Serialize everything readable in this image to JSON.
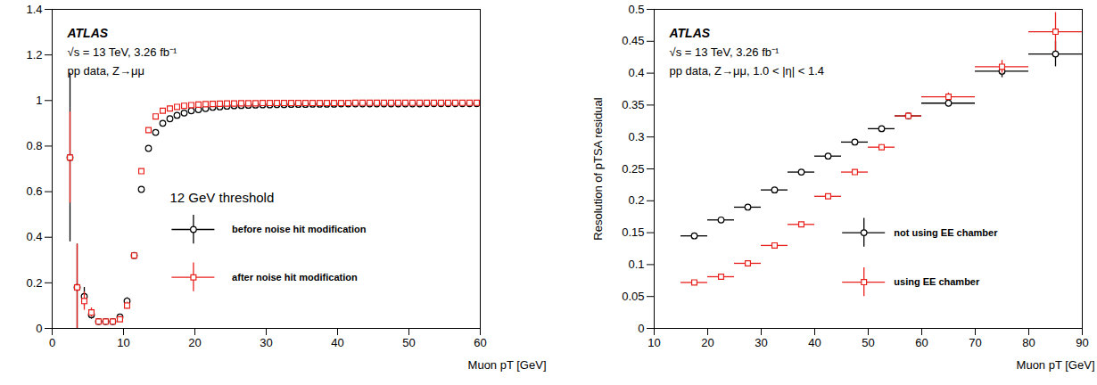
{
  "chart_data": [
    {
      "type": "scatter",
      "title": "ATLAS",
      "subtitle": [
        "√s = 13 TeV, 3.26 fb⁻¹",
        "pp data, Z→μμ"
      ],
      "annotations": [
        "12 GeV threshold"
      ],
      "xlabel": "Muon pT [GeV]",
      "ylabel": null,
      "xlim": [
        0,
        60
      ],
      "xticks": [
        0,
        10,
        20,
        30,
        40,
        50,
        60
      ],
      "ylim": [
        0,
        1.4
      ],
      "yticks": [
        0,
        0.2,
        0.4,
        0.6,
        0.8,
        1,
        1.2,
        1.4
      ],
      "x": [
        2.5,
        3.5,
        4.5,
        5.5,
        6.5,
        7.5,
        8.5,
        9.5,
        10.5,
        11.5,
        12.5,
        13.5,
        14.5,
        15.5,
        16.5,
        17.5,
        18.5,
        19.5,
        20.5,
        21.5,
        22.5,
        23.5,
        24.5,
        25.5,
        26.5,
        27.5,
        28.5,
        29.5,
        30.5,
        31.5,
        32.5,
        33.5,
        34.5,
        35.5,
        36.5,
        37.5,
        38.5,
        39.5,
        40.5,
        41.5,
        42.5,
        43.5,
        44.5,
        45.5,
        46.5,
        47.5,
        48.5,
        49.5,
        50.5,
        51.5,
        52.5,
        53.5,
        54.5,
        55.5,
        56.5,
        57.5,
        58.5,
        59.5
      ],
      "series": [
        {
          "name": "before noise hit modification",
          "color": "#000000",
          "marker": "circle",
          "values": [
            0.75,
            0.18,
            0.14,
            0.06,
            0.03,
            0.03,
            0.03,
            0.05,
            0.12,
            0.32,
            0.61,
            0.79,
            0.86,
            0.9,
            0.92,
            0.935,
            0.945,
            0.955,
            0.96,
            0.965,
            0.97,
            0.972,
            0.975,
            0.977,
            0.978,
            0.979,
            0.98,
            0.981,
            0.981,
            0.982,
            0.982,
            0.983,
            0.983,
            0.983,
            0.984,
            0.984,
            0.984,
            0.984,
            0.985,
            0.985,
            0.985,
            0.985,
            0.985,
            0.985,
            0.985,
            0.985,
            0.985,
            0.985,
            0.985,
            0.985,
            0.986,
            0.986,
            0.986,
            0.986,
            0.986,
            0.986,
            0.986,
            0.986
          ],
          "errors": [
            0.37,
            0.19,
            0.04,
            0.02,
            0.01,
            0.01,
            0.01,
            0.01,
            0.015,
            0.01,
            0.01,
            0.005,
            0.005,
            0.004,
            0.003,
            0.003,
            0.002,
            0.002,
            0.002,
            0.002,
            0.001,
            0.001,
            0.001,
            0.001,
            0.001,
            0.001,
            0.001,
            0.001,
            0.001,
            0.001,
            0.001,
            0.001,
            0.001,
            0.001,
            0.001,
            0.001,
            0.001,
            0.001,
            0.001,
            0.001,
            0.001,
            0.001,
            0.001,
            0.001,
            0.001,
            0.001,
            0.001,
            0.001,
            0.001,
            0.001,
            0.001,
            0.001,
            0.001,
            0.001,
            0.001,
            0.001,
            0.001,
            0.001
          ]
        },
        {
          "name": "after noise hit modification",
          "color": "#e8201c",
          "marker": "square",
          "values": [
            0.75,
            0.18,
            0.12,
            0.07,
            0.03,
            0.03,
            0.03,
            0.04,
            0.1,
            0.32,
            0.69,
            0.87,
            0.93,
            0.955,
            0.965,
            0.972,
            0.977,
            0.98,
            0.982,
            0.984,
            0.985,
            0.986,
            0.987,
            0.987,
            0.988,
            0.988,
            0.988,
            0.989,
            0.989,
            0.989,
            0.989,
            0.989,
            0.989,
            0.989,
            0.989,
            0.989,
            0.989,
            0.989,
            0.989,
            0.989,
            0.99,
            0.99,
            0.99,
            0.99,
            0.99,
            0.99,
            0.99,
            0.99,
            0.99,
            0.99,
            0.99,
            0.99,
            0.99,
            0.99,
            0.99,
            0.99,
            0.99,
            0.99
          ],
          "errors": [
            0.2,
            0.19,
            0.04,
            0.02,
            0.01,
            0.01,
            0.01,
            0.01,
            0.015,
            0.01,
            0.01,
            0.005,
            0.005,
            0.004,
            0.003,
            0.003,
            0.002,
            0.002,
            0.002,
            0.002,
            0.001,
            0.001,
            0.001,
            0.001,
            0.001,
            0.001,
            0.001,
            0.001,
            0.001,
            0.001,
            0.001,
            0.001,
            0.001,
            0.001,
            0.001,
            0.001,
            0.001,
            0.001,
            0.001,
            0.001,
            0.001,
            0.001,
            0.001,
            0.001,
            0.001,
            0.001,
            0.001,
            0.001,
            0.001,
            0.001,
            0.001,
            0.001,
            0.001,
            0.001,
            0.001,
            0.001,
            0.001,
            0.001
          ]
        }
      ]
    },
    {
      "type": "scatter",
      "title": "ATLAS",
      "subtitle": [
        "√s = 13 TeV, 3.26 fb⁻¹",
        "pp data, Z→μμ, 1.0 < |η| < 1.4"
      ],
      "xlabel": "Muon pT [GeV]",
      "ylabel": "Resolution of pTSA residual",
      "xlim": [
        10,
        90
      ],
      "xticks": [
        10,
        20,
        30,
        40,
        50,
        60,
        70,
        80,
        90
      ],
      "ylim": [
        0,
        0.5
      ],
      "yticks": [
        0,
        0.05,
        0.1,
        0.15,
        0.2,
        0.25,
        0.3,
        0.35,
        0.4,
        0.45,
        0.5
      ],
      "x": [
        17.5,
        22.5,
        27.5,
        32.5,
        37.5,
        42.5,
        47.5,
        52.5,
        57.5,
        65,
        75,
        85
      ],
      "x_errors": [
        2.5,
        2.5,
        2.5,
        2.5,
        2.5,
        2.5,
        2.5,
        2.5,
        2.5,
        5,
        5,
        5
      ],
      "series": [
        {
          "name": "not using EE chamber",
          "color": "#000000",
          "marker": "circle",
          "values": [
            0.145,
            0.17,
            0.19,
            0.217,
            0.245,
            0.27,
            0.292,
            0.313,
            0.333,
            0.353,
            0.403,
            0.43
          ],
          "errors": [
            0.002,
            0.002,
            0.002,
            0.002,
            0.003,
            0.003,
            0.003,
            0.004,
            0.005,
            0.005,
            0.01,
            0.02
          ]
        },
        {
          "name": "using EE chamber",
          "color": "#e8201c",
          "marker": "square",
          "values": [
            0.072,
            0.081,
            0.102,
            0.13,
            0.163,
            0.207,
            0.245,
            0.284,
            0.333,
            0.363,
            0.41,
            0.465
          ],
          "errors": [
            0.002,
            0.002,
            0.002,
            0.002,
            0.003,
            0.003,
            0.003,
            0.004,
            0.005,
            0.006,
            0.01,
            0.03
          ]
        }
      ]
    }
  ]
}
